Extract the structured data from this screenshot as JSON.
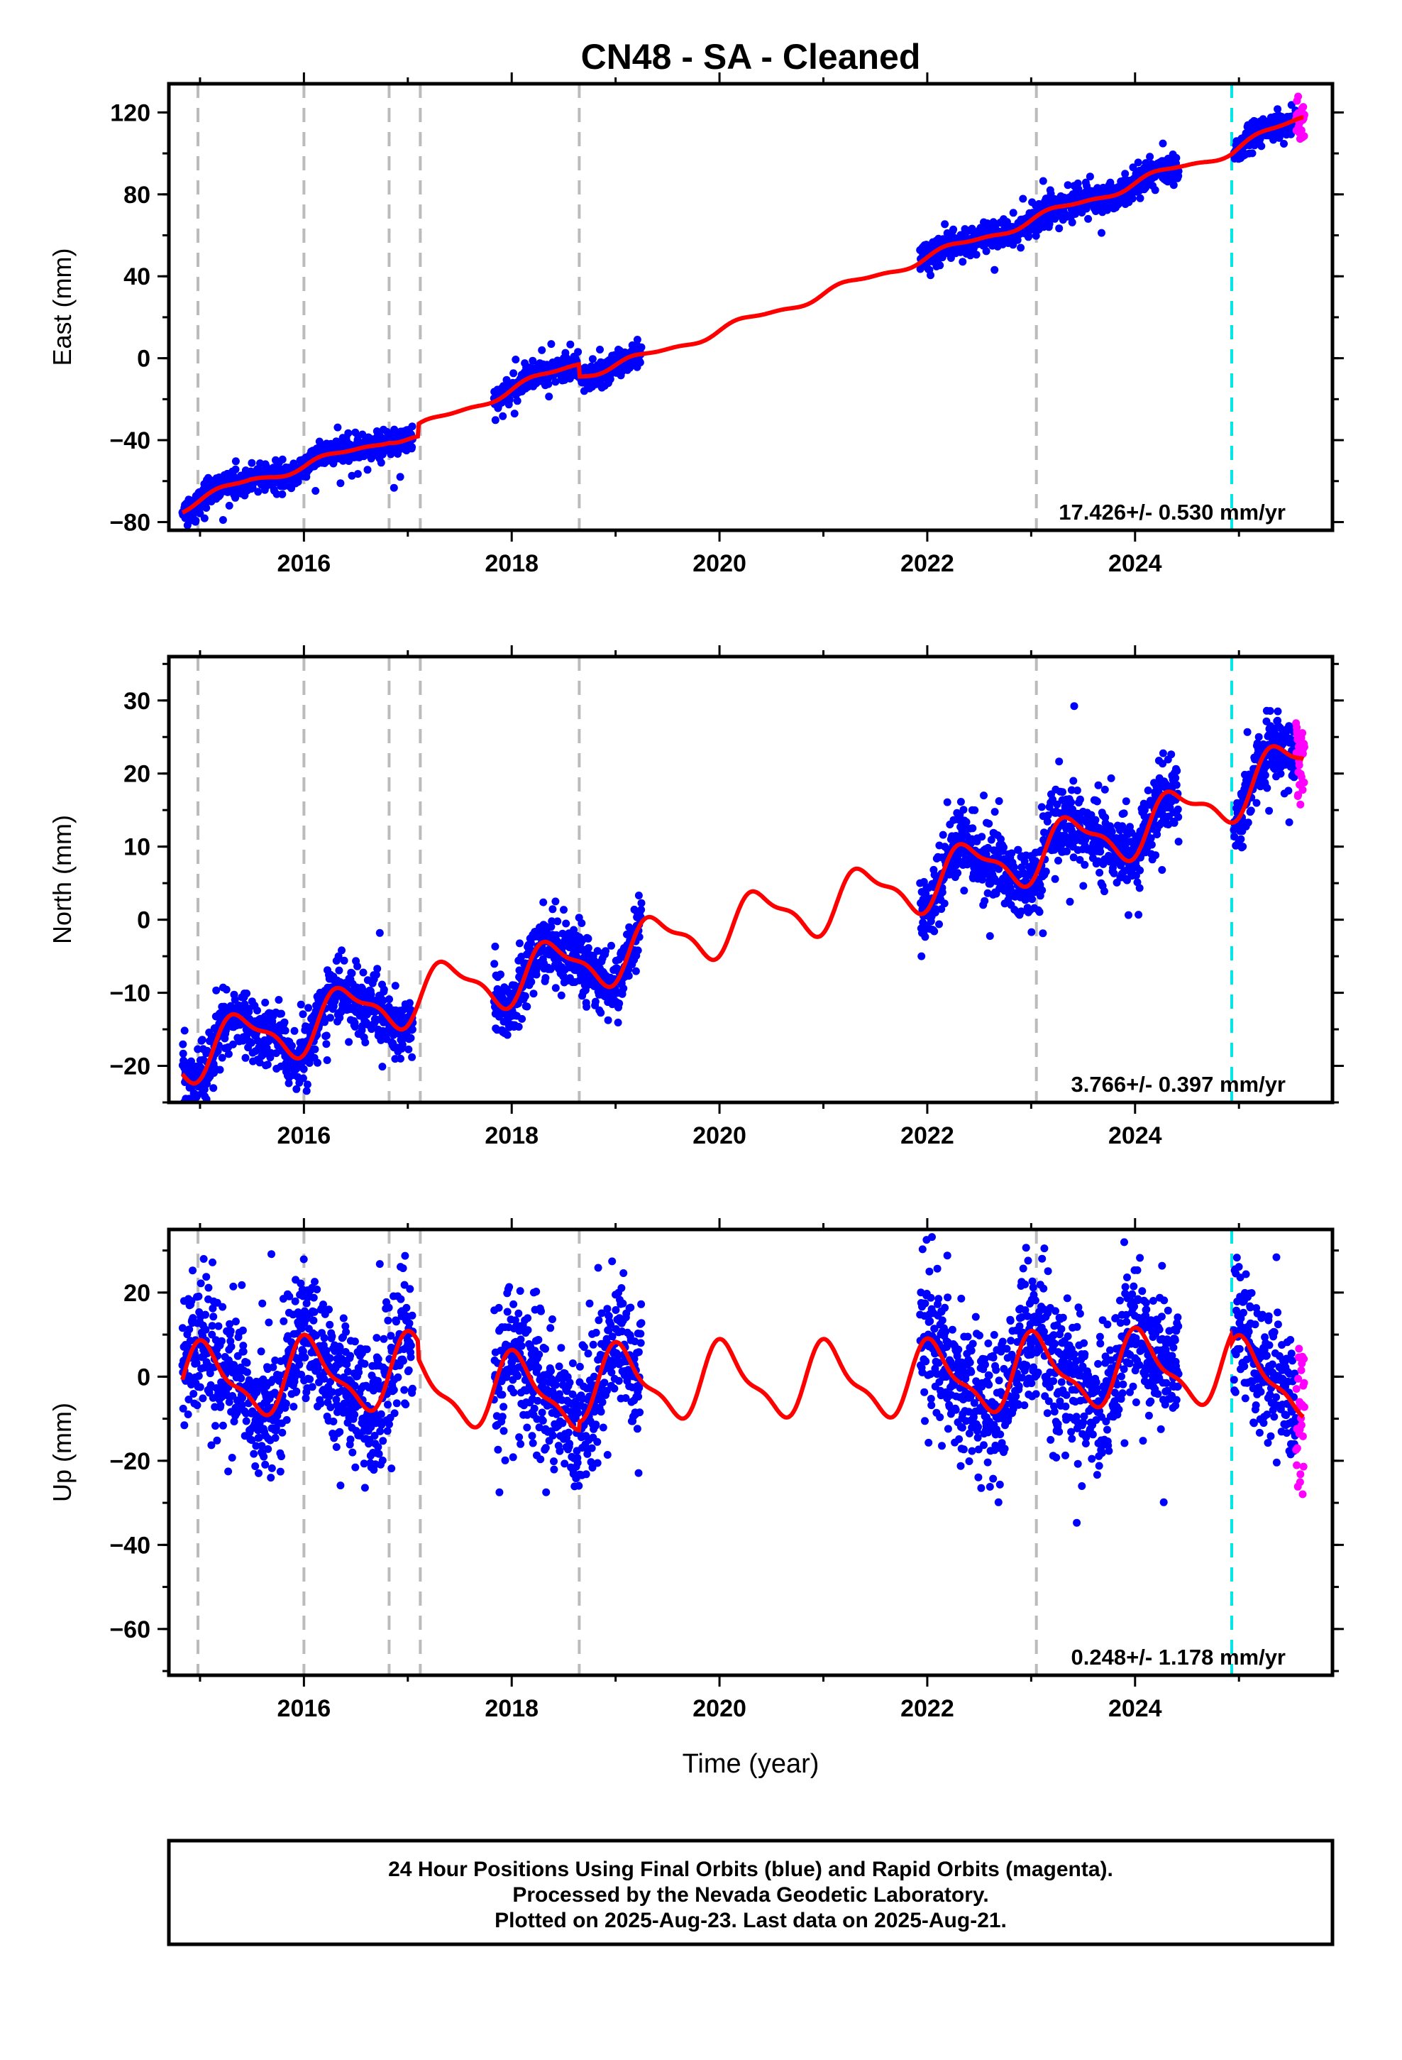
{
  "title": "CN48  - SA - Cleaned",
  "xlabel": "Time (year)",
  "footer": {
    "line1": "24 Hour Positions Using Final Orbits (blue) and Rapid Orbits (magenta).",
    "line2": "Processed by the Nevada Geodetic Laboratory.",
    "line3": "Plotted on 2025-Aug-23. Last data on 2025-Aug-21."
  },
  "colors": {
    "final_orbits": "#0000ff",
    "rapid_orbits": "#ff00ff",
    "model": "#ff0000",
    "steps": "#bbbbbb",
    "antenna_change": "#00e5e5"
  },
  "chart_data": [
    {
      "type": "scatter",
      "ylabel": "East (mm)",
      "xlim": [
        2014.7,
        2025.9
      ],
      "ylim": [
        -84,
        134
      ],
      "yticks": [
        120,
        80,
        40,
        0,
        -40,
        -80
      ],
      "xticks": [
        2016,
        2018,
        2020,
        2022,
        2024
      ],
      "grid": false,
      "rate_label": "17.426+/- 0.530 mm/yr",
      "step_lines_gray": [
        2014.98,
        2016.0,
        2016.82,
        2017.12,
        2018.65,
        2023.05
      ],
      "step_lines_cyan": [
        2024.93
      ],
      "data_segments": [
        {
          "start": 2014.83,
          "end": 2017.05,
          "noise_mm": 3
        },
        {
          "start": 2017.83,
          "end": 2019.25,
          "noise_mm": 3
        },
        {
          "start": 2021.93,
          "end": 2024.42,
          "noise_mm": 3.5
        },
        {
          "start": 2024.95,
          "end": 2025.55,
          "noise_mm": 3.5
        }
      ],
      "rapid_segment": {
        "start": 2025.55,
        "end": 2025.63
      },
      "trend_points": [
        [
          2014.83,
          -73
        ],
        [
          2015.5,
          -59
        ],
        [
          2016.0,
          -53
        ],
        [
          2016.82,
          -39
        ],
        [
          2017.1,
          -40
        ],
        [
          2017.1,
          -34
        ],
        [
          2018.65,
          -2
        ],
        [
          2018.65,
          -8
        ],
        [
          2019.25,
          0
        ],
        [
          2021.93,
          48
        ],
        [
          2024.42,
          93
        ],
        [
          2024.93,
          101
        ],
        [
          2025.6,
          118
        ]
      ],
      "seasonal_amplitude_mm": 2.0,
      "seasonal_phase": 0
    },
    {
      "type": "scatter",
      "ylabel": "North (mm)",
      "xlim": [
        2014.7,
        2025.9
      ],
      "ylim": [
        -25,
        36
      ],
      "yticks": [
        30,
        20,
        10,
        0,
        -10,
        -20
      ],
      "xticks": [
        2016,
        2018,
        2020,
        2022,
        2024
      ],
      "grid": false,
      "rate_label": "3.766+/- 0.397 mm/yr",
      "step_lines_gray": [
        2014.98,
        2016.0,
        2016.82,
        2017.12,
        2018.65,
        2023.05
      ],
      "step_lines_cyan": [
        2024.93
      ],
      "data_segments": [
        {
          "start": 2014.83,
          "end": 2017.05,
          "noise_mm": 2.2
        },
        {
          "start": 2017.83,
          "end": 2019.25,
          "noise_mm": 2.2
        },
        {
          "start": 2021.93,
          "end": 2024.42,
          "noise_mm": 2.5
        },
        {
          "start": 2024.95,
          "end": 2025.55,
          "noise_mm": 2.2
        }
      ],
      "rapid_segment": {
        "start": 2025.55,
        "end": 2025.63
      },
      "trend_points": [
        [
          2014.83,
          -18.5
        ],
        [
          2016.0,
          -14.5
        ],
        [
          2017.0,
          -10.5
        ],
        [
          2018.65,
          -6
        ],
        [
          2020.0,
          -1
        ],
        [
          2021.93,
          5
        ],
        [
          2023.0,
          9
        ],
        [
          2024.42,
          14
        ],
        [
          2024.93,
          17.5
        ],
        [
          2025.6,
          21.5
        ]
      ],
      "seasonal_amplitude_mm": 3.5,
      "seasonal_phase": -0.9
    },
    {
      "type": "scatter",
      "ylabel": "Up (mm)",
      "xlim": [
        2014.7,
        2025.9
      ],
      "ylim": [
        -71,
        35
      ],
      "yticks": [
        20,
        0,
        -20,
        -40,
        -60
      ],
      "xticks": [
        2016,
        2018,
        2020,
        2022,
        2024
      ],
      "grid": false,
      "rate_label": "0.248+/- 1.178 mm/yr",
      "step_lines_gray": [
        2014.98,
        2016.0,
        2016.82,
        2017.12,
        2018.65,
        2023.05
      ],
      "step_lines_cyan": [
        2024.93
      ],
      "data_segments": [
        {
          "start": 2014.83,
          "end": 2017.05,
          "noise_mm": 8
        },
        {
          "start": 2017.83,
          "end": 2019.25,
          "noise_mm": 8
        },
        {
          "start": 2021.93,
          "end": 2024.42,
          "noise_mm": 8
        },
        {
          "start": 2024.95,
          "end": 2025.55,
          "noise_mm": 7
        }
      ],
      "rapid_segment": {
        "start": 2025.55,
        "end": 2025.63
      },
      "trend_points": [
        [
          2014.83,
          -1.5
        ],
        [
          2016.0,
          0
        ],
        [
          2017.1,
          1
        ],
        [
          2017.1,
          -3
        ],
        [
          2018.65,
          -4
        ],
        [
          2018.65,
          -2
        ],
        [
          2020.0,
          -1
        ],
        [
          2021.93,
          -1
        ],
        [
          2023.05,
          1
        ],
        [
          2024.42,
          2
        ],
        [
          2024.93,
          2
        ],
        [
          2024.93,
          0
        ],
        [
          2025.6,
          -1
        ]
      ],
      "seasonal_amplitude_mm": 8,
      "seasonal_phase": 1.2
    }
  ]
}
